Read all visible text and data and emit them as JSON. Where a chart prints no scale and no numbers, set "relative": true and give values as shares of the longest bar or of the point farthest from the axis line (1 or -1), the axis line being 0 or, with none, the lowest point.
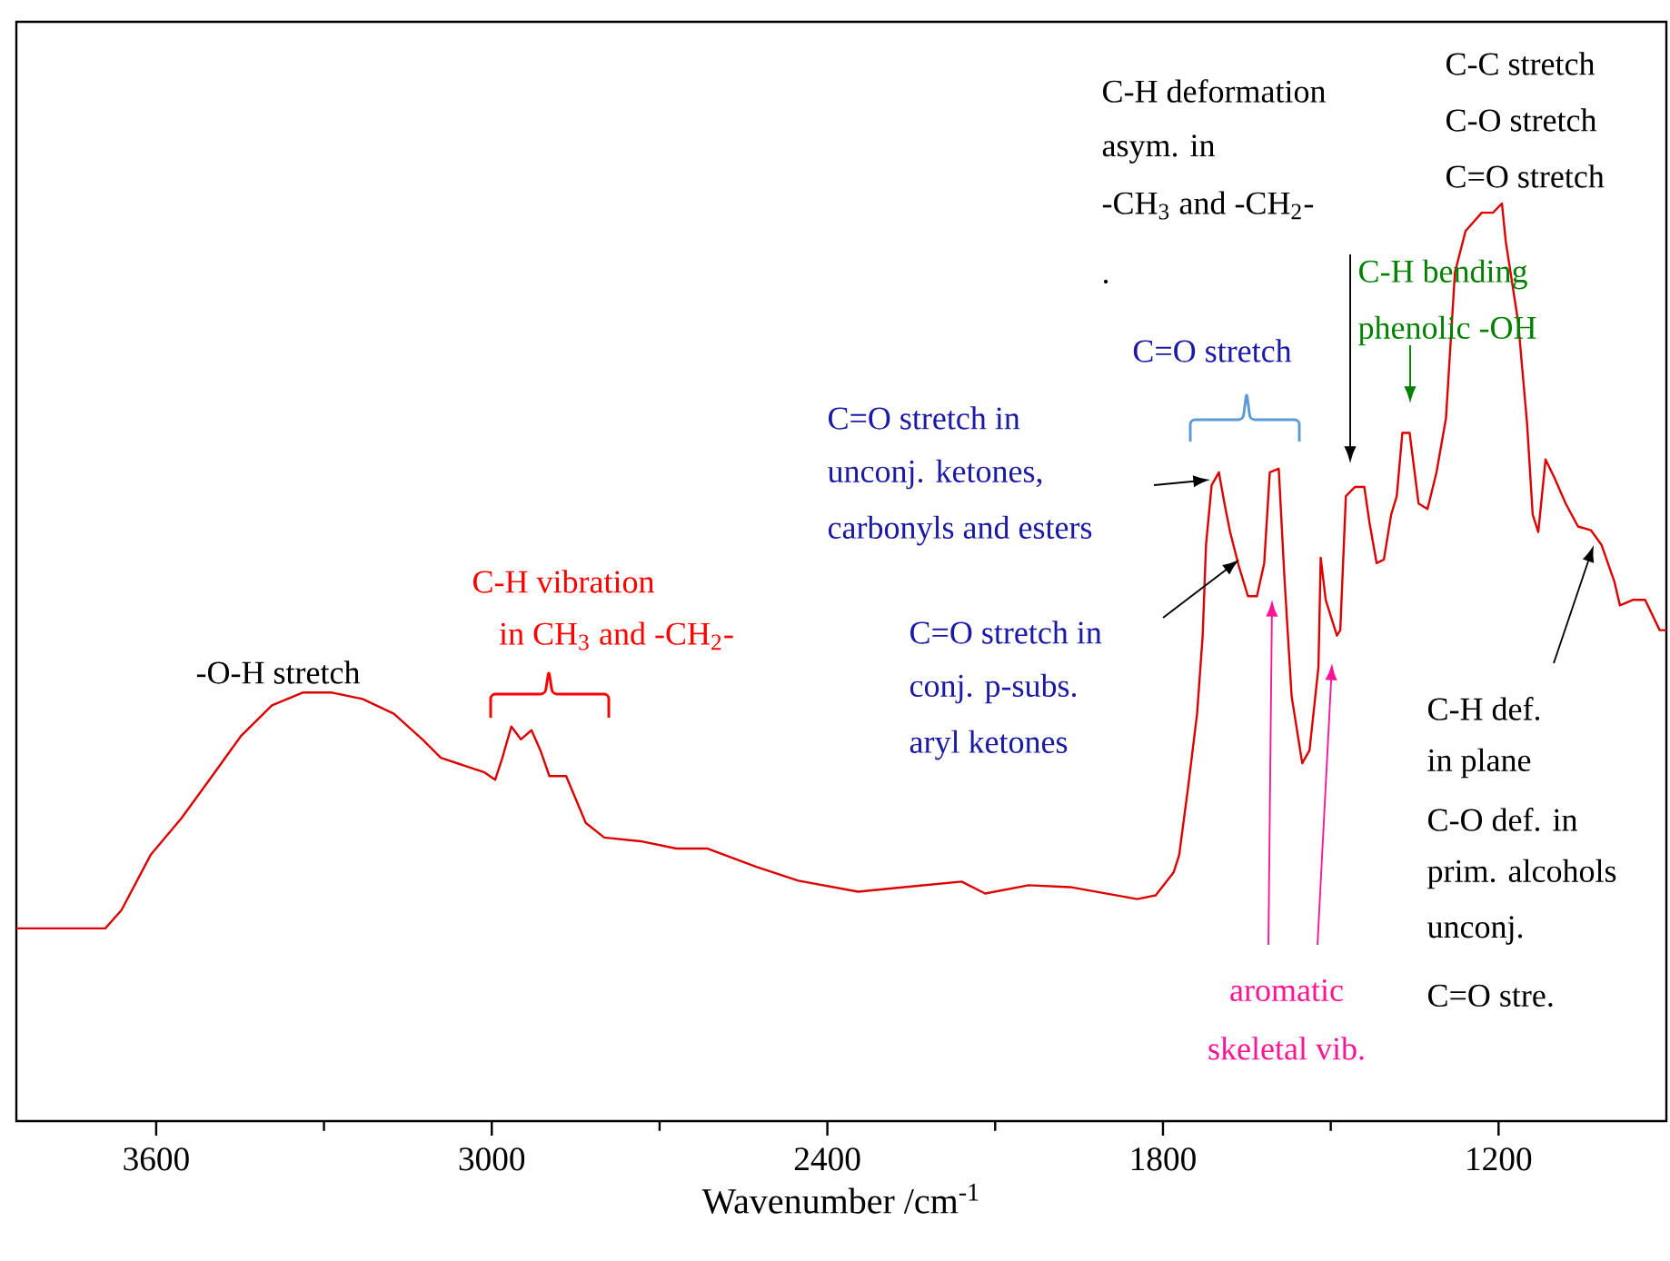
{
  "chart_data": {
    "type": "line",
    "relative": true,
    "xlabel": "Wavenumber /cm$^{-1}$",
    "xlim": [
      3850,
      900
    ],
    "xticks": [
      3600,
      {
        "value": 3300,
        "label": null
      },
      3000,
      {
        "value": 2700,
        "label": null
      },
      2400,
      {
        "value": 2100,
        "label": null
      },
      1800,
      {
        "value": 1500,
        "label": null
      },
      1200
    ],
    "series": [
      {
        "color": "#dd0000",
        "x": [
          3850,
          3691,
          3662,
          3610,
          3555,
          3500,
          3448,
          3393,
          3338,
          3286,
          3231,
          3175,
          3124,
          3091,
          3013,
          2994,
          2981,
          2965,
          2948,
          2929,
          2913,
          2897,
          2867,
          2832,
          2799,
          2734,
          2670,
          2614,
          2527,
          2452,
          2345,
          2160,
          2118,
          2040,
          1966,
          1846,
          1813,
          1781,
          1771,
          1755,
          1739,
          1729,
          1723,
          1713,
          1700,
          1690,
          1680,
          1664,
          1648,
          1632,
          1619,
          1609,
          1593,
          1583,
          1570,
          1551,
          1538,
          1522,
          1518,
          1509,
          1489,
          1483,
          1473,
          1457,
          1440,
          1431,
          1418,
          1405,
          1392,
          1382,
          1372,
          1359,
          1343,
          1327,
          1311,
          1294,
          1278,
          1259,
          1230,
          1210,
          1194,
          1187,
          1165,
          1149,
          1139,
          1129,
          1116,
          1100,
          1080,
          1058,
          1035,
          1016,
          993,
          983,
          960,
          938,
          912,
          900
        ],
        "values": [
          0.21,
          0.21,
          0.23,
          0.29,
          0.33,
          0.376,
          0.42,
          0.453,
          0.467,
          0.467,
          0.46,
          0.444,
          0.416,
          0.396,
          0.38,
          0.372,
          0.396,
          0.43,
          0.416,
          0.426,
          0.404,
          0.376,
          0.376,
          0.325,
          0.309,
          0.305,
          0.297,
          0.297,
          0.277,
          0.262,
          0.25,
          0.261,
          0.248,
          0.257,
          0.255,
          0.242,
          0.246,
          0.271,
          0.29,
          0.364,
          0.444,
          0.529,
          0.628,
          0.693,
          0.707,
          0.673,
          0.642,
          0.604,
          0.572,
          0.572,
          0.608,
          0.707,
          0.711,
          0.594,
          0.463,
          0.39,
          0.404,
          0.495,
          0.614,
          0.568,
          0.529,
          0.535,
          0.681,
          0.691,
          0.691,
          0.653,
          0.608,
          0.612,
          0.661,
          0.681,
          0.75,
          0.75,
          0.673,
          0.667,
          0.707,
          0.766,
          0.925,
          0.97,
          0.99,
          0.99,
          1.0,
          0.958,
          0.871,
          0.76,
          0.661,
          0.642,
          0.721,
          0.701,
          0.673,
          0.648,
          0.644,
          0.628,
          0.588,
          0.562,
          0.568,
          0.568,
          0.535,
          0.535
        ]
      }
    ],
    "annotations": [
      "-O-H stretch",
      "C-H vibration",
      " in CH$_{3}$ and  -CH$_{2}$-",
      "C=O stretch in",
      "unconj. ketones,",
      "carbonyls and esters",
      "C=O stretch in",
      "conj. p-subs.",
      "aryl ketones",
      "C=O stretch",
      "C-H deformation",
      "asym. in",
      "-CH$_{3}$ and -CH$_{2}$-",
      ".",
      "C-C stretch",
      "C-O stretch",
      "C=O stretch",
      "C-H bending",
      "phenolic -OH",
      "C-H def.",
      "in plane",
      "C-O def. in",
      "prim. alcohols",
      "unconj.",
      "C=O stre.",
      "aromatic",
      "skeletal vib."
    ]
  }
}
